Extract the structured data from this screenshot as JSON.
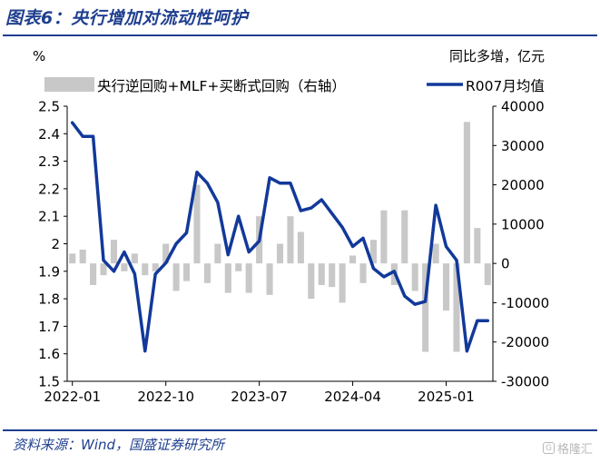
{
  "header": {
    "title": "图表6：央行增加对流动性呵护"
  },
  "footer": {
    "source": "资料来源：Wind，国盛证券研究所",
    "watermark": "格隆汇"
  },
  "colors": {
    "bar": "#c8c8c8",
    "line": "#12399a",
    "title": "#1f3f8f"
  },
  "chart_data": {
    "type": "bar+line",
    "left_unit": "%",
    "right_unit": "同比多增，亿元",
    "x_tick_labels": [
      "2022-01",
      "2022-10",
      "2023-07",
      "2024-04",
      "2025-01"
    ],
    "left_axis": {
      "ylim": [
        1.5,
        2.5
      ],
      "ticks": [
        "1.5",
        "1.6",
        "1.7",
        "1.8",
        "1.9",
        "2",
        "2.1",
        "2.2",
        "2.3",
        "2.4",
        "2.5"
      ]
    },
    "right_axis": {
      "ylim": [
        -30000,
        40000
      ],
      "ticks": [
        "-30000",
        "-20000",
        "-10000",
        "0",
        "10000",
        "20000",
        "30000",
        "40000"
      ]
    },
    "legend": [
      {
        "name": "央行逆回购+MLF+买断式回购（右轴）",
        "kind": "bar"
      },
      {
        "name": "R007月均值",
        "kind": "line"
      }
    ],
    "x": [
      "2022-01",
      "2022-02",
      "2022-03",
      "2022-04",
      "2022-05",
      "2022-06",
      "2022-07",
      "2022-08",
      "2022-09",
      "2022-10",
      "2022-11",
      "2022-12",
      "2023-01",
      "2023-02",
      "2023-03",
      "2023-04",
      "2023-05",
      "2023-06",
      "2023-07",
      "2023-08",
      "2023-09",
      "2023-10",
      "2023-11",
      "2023-12",
      "2024-01",
      "2024-02",
      "2024-03",
      "2024-04",
      "2024-05",
      "2024-06",
      "2024-07",
      "2024-08",
      "2024-09",
      "2024-10",
      "2024-11",
      "2024-12",
      "2025-01",
      "2025-02",
      "2025-03",
      "2025-04",
      "2025-05"
    ],
    "series": [
      {
        "name": "央行逆回购+MLF+买断式回购（右轴）",
        "axis": "right",
        "values": [
          2500,
          3500,
          -5500,
          -3000,
          6000,
          -2000,
          2500,
          -3000,
          -2000,
          5000,
          -7000,
          -4500,
          20000,
          -5000,
          5000,
          -7500,
          -2000,
          -7500,
          12000,
          -8000,
          5000,
          12000,
          8000,
          -9000,
          -5500,
          -6000,
          -10000,
          2000,
          -5000,
          6000,
          13500,
          -5500,
          13500,
          -7000,
          -22500,
          5000,
          -12000,
          -22500,
          36000,
          9000,
          -5500
        ]
      },
      {
        "name": "R007月均值",
        "axis": "left",
        "values": [
          2.44,
          2.39,
          2.39,
          1.94,
          1.9,
          1.97,
          1.89,
          1.61,
          1.89,
          1.93,
          2.0,
          2.04,
          2.26,
          2.22,
          2.15,
          1.96,
          2.1,
          1.97,
          2.01,
          2.24,
          2.22,
          2.22,
          2.12,
          2.13,
          2.16,
          2.11,
          2.06,
          1.99,
          2.02,
          1.91,
          1.88,
          1.9,
          1.81,
          1.78,
          1.79,
          2.14,
          1.99,
          1.94,
          1.61,
          1.72,
          1.72
        ]
      }
    ]
  }
}
